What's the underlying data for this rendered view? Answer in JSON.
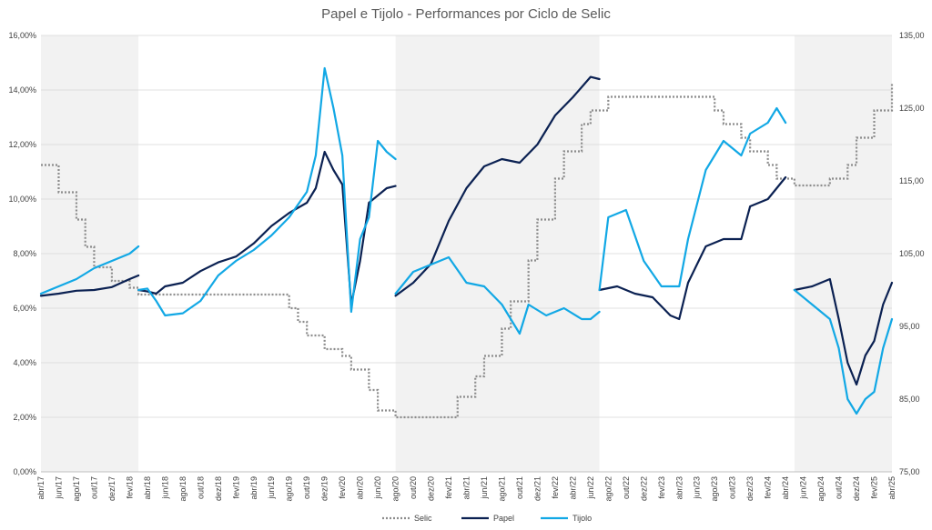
{
  "chart_data": {
    "type": "line",
    "title": "Papel e Tijolo - Performances por Ciclo de Selic",
    "xlabel": "",
    "ylabel": "",
    "y_left_ticks": [
      "0,00%",
      "2,00%",
      "4,00%",
      "6,00%",
      "8,00%",
      "10,00%",
      "12,00%",
      "14,00%",
      "16,00%"
    ],
    "y_left_range": [
      0,
      16
    ],
    "y_right_ticks": [
      "75,00",
      "85,00",
      "95,00",
      "105,00",
      "115,00",
      "125,00",
      "135,00"
    ],
    "y_right_range": [
      75,
      135
    ],
    "x_tick_labels": [
      "abr/17",
      "jun/17",
      "ago/17",
      "out/17",
      "dez/17",
      "fev/18",
      "abr/18",
      "jun/18",
      "ago/18",
      "out/18",
      "dez/18",
      "fev/19",
      "abr/19",
      "jun/19",
      "ago/19",
      "out/19",
      "dez/19",
      "fev/20",
      "abr/20",
      "jun/20",
      "ago/20",
      "out/20",
      "dez/20",
      "fev/21",
      "abr/21",
      "jun/21",
      "ago/21",
      "out/21",
      "dez/21",
      "fev/22",
      "abr/22",
      "jun/22",
      "ago/22",
      "out/22",
      "dez/22",
      "fev/23",
      "abr/23",
      "jun/23",
      "ago/23",
      "out/23",
      "dez/23",
      "fev/24",
      "abr/24",
      "jun/24",
      "ago/24",
      "out/24",
      "dez/24",
      "fev/25",
      "abr/25"
    ],
    "shaded_periods": [
      {
        "start": "abr/17",
        "end": "mar/18"
      },
      {
        "start": "ago/20",
        "end": "jul/22"
      },
      {
        "start": "mai/24",
        "end": "abr/25"
      }
    ],
    "legend": [
      "Selic",
      "Papel",
      "Tijolo"
    ],
    "legend_position": "bottom",
    "colors": {
      "Selic": "#8c8c8c",
      "Papel": "#0b2152",
      "Tijolo": "#12a8e5",
      "shade": "#f2f2f2",
      "grid": "#d9d9d9"
    },
    "series": [
      {
        "name": "Selic",
        "axis": "left",
        "style": "dotted-step",
        "points": [
          [
            "abr/17",
            11.25
          ],
          [
            "mai/17",
            11.25
          ],
          [
            "jun/17",
            10.25
          ],
          [
            "ago/17",
            9.25
          ],
          [
            "set/17",
            8.25
          ],
          [
            "out/17",
            7.5
          ],
          [
            "dez/17",
            7.0
          ],
          [
            "fev/18",
            6.75
          ],
          [
            "mar/18",
            6.5
          ],
          [
            "abr/18",
            6.5
          ],
          [
            "jul/19",
            6.5
          ],
          [
            "ago/19",
            6.0
          ],
          [
            "set/19",
            5.5
          ],
          [
            "out/19",
            5.0
          ],
          [
            "dez/19",
            4.5
          ],
          [
            "fev/20",
            4.25
          ],
          [
            "mar/20",
            3.75
          ],
          [
            "mai/20",
            3.0
          ],
          [
            "jun/20",
            2.25
          ],
          [
            "ago/20",
            2.0
          ],
          [
            "mar/21",
            2.75
          ],
          [
            "mai/21",
            3.5
          ],
          [
            "jun/21",
            4.25
          ],
          [
            "ago/21",
            5.25
          ],
          [
            "set/21",
            6.25
          ],
          [
            "nov/21",
            7.75
          ],
          [
            "dez/21",
            9.25
          ],
          [
            "fev/22",
            10.75
          ],
          [
            "mar/22",
            11.75
          ],
          [
            "mai/22",
            12.75
          ],
          [
            "jun/22",
            13.25
          ],
          [
            "ago/22",
            13.75
          ],
          [
            "ago/23",
            13.25
          ],
          [
            "set/23",
            12.75
          ],
          [
            "nov/23",
            12.25
          ],
          [
            "dez/23",
            11.75
          ],
          [
            "fev/24",
            11.25
          ],
          [
            "mar/24",
            10.75
          ],
          [
            "mai/24",
            10.5
          ],
          [
            "set/24",
            10.75
          ],
          [
            "nov/24",
            11.25
          ],
          [
            "dez/24",
            12.25
          ],
          [
            "fev/25",
            13.25
          ],
          [
            "abr/25",
            14.25
          ]
        ]
      },
      {
        "name": "Papel",
        "axis": "right",
        "style": "solid",
        "segments": [
          [
            [
              "abr/17",
              99.2
            ],
            [
              "jun/17",
              99.5
            ],
            [
              "ago/17",
              99.9
            ],
            [
              "out/17",
              100.0
            ],
            [
              "dez/17",
              100.4
            ],
            [
              "fev/18",
              101.5
            ],
            [
              "mar/18",
              102.0
            ]
          ],
          [
            [
              "mar/18",
              100.0
            ],
            [
              "abr/18",
              99.8
            ],
            [
              "mai/18",
              99.5
            ],
            [
              "jun/18",
              100.5
            ],
            [
              "ago/18",
              101.0
            ],
            [
              "out/18",
              102.6
            ],
            [
              "dez/18",
              103.8
            ],
            [
              "fev/19",
              104.6
            ],
            [
              "abr/19",
              106.4
            ],
            [
              "jun/19",
              108.8
            ],
            [
              "ago/19",
              110.6
            ],
            [
              "out/19",
              112.0
            ],
            [
              "nov/19",
              114.0
            ],
            [
              "dez/19",
              119.0
            ],
            [
              "jan/20",
              116.5
            ],
            [
              "fev/20",
              114.5
            ],
            [
              "mar/20",
              98.0
            ],
            [
              "abr/20",
              104.0
            ],
            [
              "mai/20",
              112.0
            ],
            [
              "jun/20",
              113.0
            ],
            [
              "jul/20",
              114.0
            ],
            [
              "ago/20",
              114.3
            ]
          ],
          [
            [
              "ago/20",
              99.2
            ],
            [
              "out/20",
              101.0
            ],
            [
              "dez/20",
              103.6
            ],
            [
              "fev/21",
              109.5
            ],
            [
              "abr/21",
              114.0
            ],
            [
              "jun/21",
              117.0
            ],
            [
              "ago/21",
              118.0
            ],
            [
              "out/21",
              117.5
            ],
            [
              "dez/21",
              120.0
            ],
            [
              "fev/22",
              124.0
            ],
            [
              "abr/22",
              126.5
            ],
            [
              "jun/22",
              129.3
            ],
            [
              "jul/22",
              129.0
            ]
          ],
          [
            [
              "jul/22",
              100.0
            ],
            [
              "set/22",
              100.5
            ],
            [
              "nov/22",
              99.5
            ],
            [
              "jan/23",
              99.0
            ],
            [
              "mar/23",
              96.5
            ],
            [
              "abr/23",
              96.0
            ],
            [
              "mai/23",
              101.0
            ],
            [
              "jul/23",
              106.0
            ],
            [
              "set/23",
              107.0
            ],
            [
              "nov/23",
              107.0
            ],
            [
              "dez/23",
              111.5
            ],
            [
              "fev/24",
              112.5
            ],
            [
              "abr/24",
              115.5
            ]
          ],
          [
            [
              "mai/24",
              100.0
            ],
            [
              "jul/24",
              100.5
            ],
            [
              "set/24",
              101.5
            ],
            [
              "out/24",
              96.0
            ],
            [
              "nov/24",
              90.0
            ],
            [
              "dez/24",
              87.0
            ],
            [
              "jan/25",
              91.0
            ],
            [
              "fev/25",
              93.0
            ],
            [
              "mar/25",
              98.0
            ],
            [
              "abr/25",
              101.0
            ]
          ]
        ]
      },
      {
        "name": "Tijolo",
        "axis": "right",
        "style": "solid",
        "segments": [
          [
            [
              "abr/17",
              99.5
            ],
            [
              "jun/17",
              100.5
            ],
            [
              "ago/17",
              101.5
            ],
            [
              "out/17",
              103.0
            ],
            [
              "dez/17",
              104.0
            ],
            [
              "fev/18",
              105.0
            ],
            [
              "mar/18",
              106.0
            ]
          ],
          [
            [
              "mar/18",
              100.0
            ],
            [
              "abr/18",
              100.2
            ],
            [
              "mai/18",
              98.5
            ],
            [
              "jun/18",
              96.5
            ],
            [
              "ago/18",
              96.8
            ],
            [
              "out/18",
              98.5
            ],
            [
              "dez/18",
              102.0
            ],
            [
              "fev/19",
              104.0
            ],
            [
              "abr/19",
              105.5
            ],
            [
              "jun/19",
              107.5
            ],
            [
              "ago/19",
              110.0
            ],
            [
              "out/19",
              113.5
            ],
            [
              "nov/19",
              118.5
            ],
            [
              "dez/19",
              130.5
            ],
            [
              "jan/20",
              125.0
            ],
            [
              "fev/20",
              118.5
            ],
            [
              "mar/20",
              97.0
            ],
            [
              "abr/20",
              107.0
            ],
            [
              "mai/20",
              110.0
            ],
            [
              "jun/20",
              120.5
            ],
            [
              "jul/20",
              119.0
            ],
            [
              "ago/20",
              118.0
            ]
          ],
          [
            [
              "ago/20",
              99.5
            ],
            [
              "out/20",
              102.5
            ],
            [
              "dez/20",
              103.5
            ],
            [
              "fev/21",
              104.5
            ],
            [
              "abr/21",
              101.0
            ],
            [
              "jun/21",
              100.5
            ],
            [
              "ago/21",
              98.0
            ],
            [
              "set/21",
              96.0
            ],
            [
              "out/21",
              94.0
            ],
            [
              "nov/21",
              98.0
            ],
            [
              "jan/22",
              96.5
            ],
            [
              "mar/22",
              97.5
            ],
            [
              "mai/22",
              96.0
            ],
            [
              "jun/22",
              96.0
            ],
            [
              "jul/22",
              97.0
            ]
          ],
          [
            [
              "jul/22",
              100.0
            ],
            [
              "ago/22",
              110.0
            ],
            [
              "out/22",
              111.0
            ],
            [
              "dez/22",
              104.0
            ],
            [
              "fev/23",
              100.5
            ],
            [
              "abr/23",
              100.5
            ],
            [
              "mai/23",
              107.0
            ],
            [
              "jul/23",
              116.5
            ],
            [
              "set/23",
              120.5
            ],
            [
              "nov/23",
              118.5
            ],
            [
              "dez/23",
              121.5
            ],
            [
              "fev/24",
              123.0
            ],
            [
              "mar/24",
              125.0
            ],
            [
              "abr/24",
              123.0
            ]
          ],
          [
            [
              "mai/24",
              100.0
            ],
            [
              "jul/24",
              98.0
            ],
            [
              "set/24",
              96.0
            ],
            [
              "out/24",
              92.0
            ],
            [
              "nov/24",
              85.0
            ],
            [
              "dez/24",
              83.0
            ],
            [
              "jan/25",
              85.0
            ],
            [
              "fev/25",
              86.0
            ],
            [
              "mar/25",
              92.0
            ],
            [
              "abr/25",
              96.0
            ]
          ]
        ]
      }
    ]
  }
}
